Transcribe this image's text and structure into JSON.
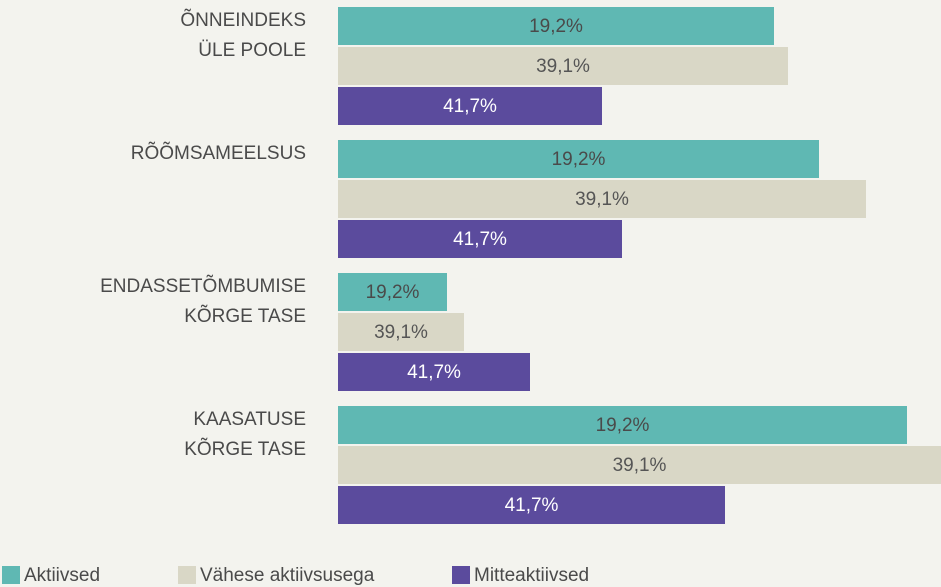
{
  "chart_data": {
    "type": "barh",
    "categories": [
      [
        "ÕNNEINDEKS",
        "ÜLE POOLE"
      ],
      [
        "RÕÕMSAMEELSUS"
      ],
      [
        "ENDASSETÕMBUMISE",
        "KÕRGE TASE"
      ],
      [
        "KAASATUSE",
        "KÕRGE TASE"
      ]
    ],
    "xlim": [
      0,
      60.3
    ],
    "legend": "bottom-left",
    "series": [
      {
        "name": "Aktiivsed",
        "color": "#5fb8b3",
        "label_color": "#4a4a4a",
        "values": [
          43.6,
          48.1,
          10.9,
          56.9
        ],
        "value_labels": [
          "19,2%",
          "19,2%",
          "19,2%",
          "19,2%"
        ]
      },
      {
        "name": "Vähese aktiivsusega",
        "color": "#d9d7c6",
        "label_color": "#555555",
        "values": [
          45.0,
          52.8,
          12.6,
          60.3
        ],
        "value_labels": [
          "39,1%",
          "39,1%",
          "39,1%",
          "39,1%"
        ]
      },
      {
        "name": "Mitteaktiivsed",
        "color": "#5b4b9d",
        "label_color": "#ffffff",
        "values": [
          26.4,
          28.4,
          19.2,
          38.7
        ],
        "value_labels": [
          "41,7%",
          "41,7%",
          "41,7%",
          "41,7%"
        ]
      }
    ]
  }
}
